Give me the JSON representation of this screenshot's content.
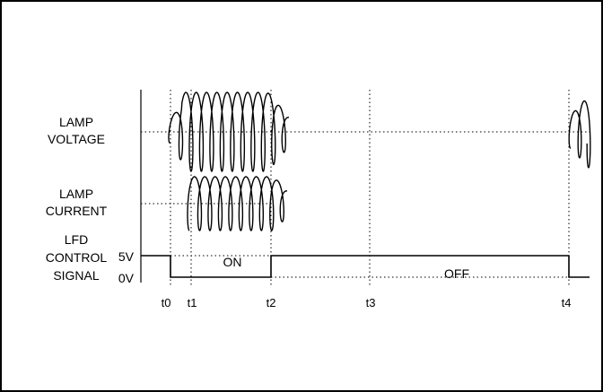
{
  "diagram": {
    "signal_labels": [
      {
        "id": "lamp-voltage",
        "lines": [
          "LAMP",
          "VOLTAGE"
        ]
      },
      {
        "id": "lamp-current",
        "lines": [
          "LAMP",
          "CURRENT"
        ]
      },
      {
        "id": "lfd-control-signal",
        "lines": [
          "LFD",
          "CONTROL",
          "SIGNAL"
        ]
      }
    ],
    "levels": {
      "high": "5V",
      "low": "0V"
    },
    "time_markers": [
      "t0",
      "t1",
      "t2",
      "t3",
      "t4"
    ],
    "states": {
      "on": "ON",
      "off": "OFF"
    }
  }
}
